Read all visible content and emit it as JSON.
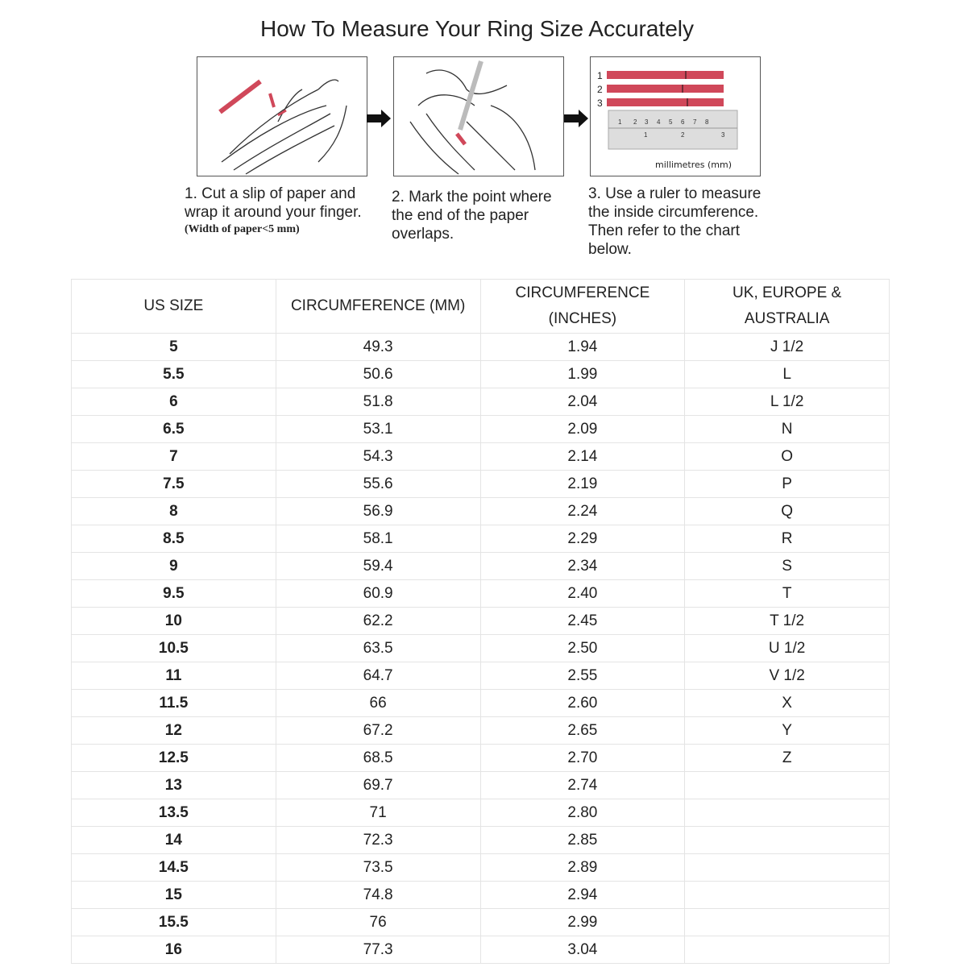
{
  "title": "How To Measure Your Ring Size Accurately",
  "steps": [
    {
      "text": "1. Cut a slip of paper and wrap it around your finger.",
      "note": "(Width of paper<5 mm)"
    },
    {
      "text": "2. Mark the point where the end of the paper overlaps."
    },
    {
      "text": "3. Use a ruler to measure the inside circumference. Then refer to the chart below."
    }
  ],
  "ruler": {
    "strip_labels": [
      "1",
      "2",
      "3"
    ],
    "unit_label": "millimetres (mm)",
    "top_ticks": [
      "1",
      "2",
      "3",
      "4",
      "5",
      "6",
      "7",
      "8"
    ],
    "bottom_ticks": [
      "1",
      "2",
      "3"
    ]
  },
  "accent_color": "#d0485a",
  "table": {
    "headers": [
      "US SIZE",
      "CIRCUMFERENCE (MM)",
      "CIRCUMFERENCE (INCHES)",
      "UK, EUROPE & AUSTRALIA"
    ],
    "rows": [
      [
        "5",
        "49.3",
        "1.94",
        "J 1/2"
      ],
      [
        "5.5",
        "50.6",
        "1.99",
        "L"
      ],
      [
        "6",
        "51.8",
        "2.04",
        "L 1/2"
      ],
      [
        "6.5",
        "53.1",
        "2.09",
        "N"
      ],
      [
        "7",
        "54.3",
        "2.14",
        "O"
      ],
      [
        "7.5",
        "55.6",
        "2.19",
        "P"
      ],
      [
        "8",
        "56.9",
        "2.24",
        "Q"
      ],
      [
        "8.5",
        "58.1",
        "2.29",
        "R"
      ],
      [
        "9",
        "59.4",
        "2.34",
        "S"
      ],
      [
        "9.5",
        "60.9",
        "2.40",
        "T"
      ],
      [
        "10",
        "62.2",
        "2.45",
        "T 1/2"
      ],
      [
        "10.5",
        "63.5",
        "2.50",
        "U 1/2"
      ],
      [
        "11",
        "64.7",
        "2.55",
        "V 1/2"
      ],
      [
        "11.5",
        "66",
        "2.60",
        "X"
      ],
      [
        "12",
        "67.2",
        "2.65",
        "Y"
      ],
      [
        "12.5",
        "68.5",
        "2.70",
        "Z"
      ],
      [
        "13",
        "69.7",
        "2.74",
        ""
      ],
      [
        "13.5",
        "71",
        "2.80",
        ""
      ],
      [
        "14",
        "72.3",
        "2.85",
        ""
      ],
      [
        "14.5",
        "73.5",
        "2.89",
        ""
      ],
      [
        "15",
        "74.8",
        "2.94",
        ""
      ],
      [
        "15.5",
        "76",
        "2.99",
        ""
      ],
      [
        "16",
        "77.3",
        "3.04",
        ""
      ]
    ]
  }
}
